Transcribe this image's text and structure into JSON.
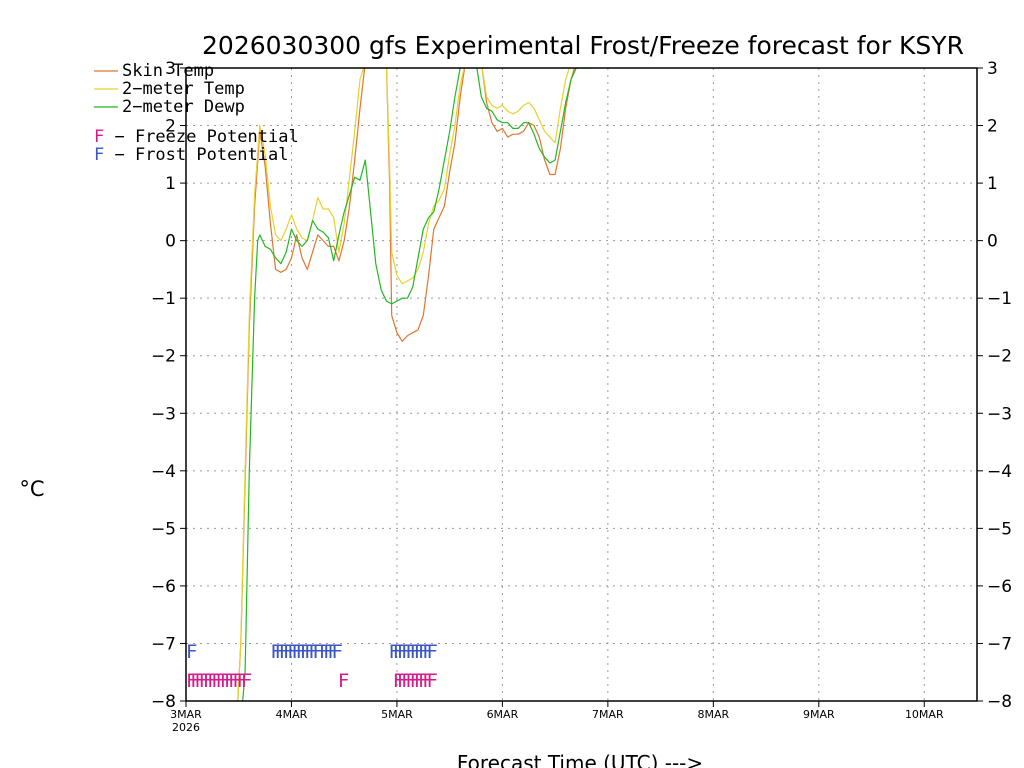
{
  "chart_data": {
    "type": "line",
    "title": "2026030300 gfs Experimental Frost/Freeze forecast for KSYR",
    "ylabel": "°C",
    "xlabel": "Forecast Time (UTC) --->",
    "ylim": [
      -8,
      3
    ],
    "xlim_days": [
      0,
      7.5
    ],
    "yticks": [
      "−8",
      "−7",
      "−6",
      "−5",
      "−4",
      "−3",
      "−2",
      "−1",
      "0",
      "1",
      "2",
      "3"
    ],
    "yticks_right": [
      "−8",
      "−7",
      "−6",
      "−5",
      "−4",
      "−3",
      "−2",
      "−1",
      "0",
      "1",
      "2",
      "3"
    ],
    "xticks": [
      {
        "day": 0,
        "label": "3MAR",
        "sub": "2026"
      },
      {
        "day": 1,
        "label": "4MAR",
        "sub": ""
      },
      {
        "day": 2,
        "label": "5MAR",
        "sub": ""
      },
      {
        "day": 3,
        "label": "6MAR",
        "sub": ""
      },
      {
        "day": 4,
        "label": "7MAR",
        "sub": ""
      },
      {
        "day": 5,
        "label": "8MAR",
        "sub": ""
      },
      {
        "day": 6,
        "label": "9MAR",
        "sub": ""
      },
      {
        "day": 7,
        "label": "10MAR",
        "sub": ""
      }
    ],
    "grid": true,
    "legend": {
      "position": "top-left",
      "series_entries": [
        "Skin Temp",
        "2−meter Temp",
        "2−meter Dewp"
      ],
      "marker_entries": [
        {
          "symbol": "F",
          "text": " − Freeze Potential",
          "color": "#d81b8c"
        },
        {
          "symbol": "F",
          "text": " − Frost Potential",
          "color": "#3a55c8"
        }
      ]
    },
    "series": [
      {
        "name": "Skin Temp",
        "color": "#e2762c",
        "points": [
          [
            0.48,
            -8.4
          ],
          [
            0.52,
            -7.0
          ],
          [
            0.56,
            -4.2
          ],
          [
            0.6,
            -1.5
          ],
          [
            0.65,
            0.6
          ],
          [
            0.7,
            1.9
          ],
          [
            0.75,
            1.3
          ],
          [
            0.8,
            0.3
          ],
          [
            0.85,
            -0.5
          ],
          [
            0.9,
            -0.55
          ],
          [
            0.95,
            -0.5
          ],
          [
            1.0,
            -0.3
          ],
          [
            1.05,
            0.1
          ],
          [
            1.1,
            -0.3
          ],
          [
            1.15,
            -0.5
          ],
          [
            1.2,
            -0.2
          ],
          [
            1.25,
            0.1
          ],
          [
            1.3,
            0.0
          ],
          [
            1.35,
            -0.1
          ],
          [
            1.4,
            -0.1
          ],
          [
            1.45,
            -0.35
          ],
          [
            1.5,
            0.0
          ],
          [
            1.55,
            0.6
          ],
          [
            1.6,
            1.4
          ],
          [
            1.65,
            2.3
          ],
          [
            1.7,
            3.1
          ],
          [
            1.9,
            3.1
          ],
          [
            1.93,
            1.0
          ],
          [
            1.95,
            -1.3
          ],
          [
            2.0,
            -1.6
          ],
          [
            2.05,
            -1.75
          ],
          [
            2.1,
            -1.65
          ],
          [
            2.15,
            -1.6
          ],
          [
            2.2,
            -1.55
          ],
          [
            2.25,
            -1.3
          ],
          [
            2.3,
            -0.6
          ],
          [
            2.35,
            0.2
          ],
          [
            2.4,
            0.4
          ],
          [
            2.45,
            0.6
          ],
          [
            2.5,
            1.2
          ],
          [
            2.55,
            1.7
          ],
          [
            2.6,
            2.5
          ],
          [
            2.65,
            3.1
          ],
          [
            2.8,
            3.1
          ],
          [
            2.85,
            2.4
          ],
          [
            2.9,
            2.05
          ],
          [
            2.95,
            1.9
          ],
          [
            3.0,
            1.95
          ],
          [
            3.05,
            1.8
          ],
          [
            3.1,
            1.85
          ],
          [
            3.15,
            1.85
          ],
          [
            3.2,
            1.9
          ],
          [
            3.25,
            2.05
          ],
          [
            3.3,
            2.0
          ],
          [
            3.35,
            1.8
          ],
          [
            3.4,
            1.4
          ],
          [
            3.45,
            1.15
          ],
          [
            3.5,
            1.15
          ],
          [
            3.55,
            1.6
          ],
          [
            3.6,
            2.3
          ],
          [
            3.65,
            2.8
          ],
          [
            3.7,
            3.1
          ]
        ]
      },
      {
        "name": "2−meter Temp",
        "color": "#e8d22a",
        "points": [
          [
            0.48,
            -8.4
          ],
          [
            0.52,
            -7.0
          ],
          [
            0.56,
            -4.0
          ],
          [
            0.6,
            -1.3
          ],
          [
            0.65,
            0.8
          ],
          [
            0.7,
            2.0
          ],
          [
            0.75,
            1.5
          ],
          [
            0.8,
            0.6
          ],
          [
            0.85,
            0.1
          ],
          [
            0.9,
            0.0
          ],
          [
            0.95,
            0.2
          ],
          [
            1.0,
            0.45
          ],
          [
            1.05,
            0.2
          ],
          [
            1.1,
            0.05
          ],
          [
            1.15,
            0.0
          ],
          [
            1.2,
            0.35
          ],
          [
            1.25,
            0.75
          ],
          [
            1.3,
            0.55
          ],
          [
            1.35,
            0.55
          ],
          [
            1.4,
            0.4
          ],
          [
            1.45,
            -0.2
          ],
          [
            1.5,
            0.3
          ],
          [
            1.55,
            1.1
          ],
          [
            1.6,
            1.9
          ],
          [
            1.65,
            2.8
          ],
          [
            1.7,
            3.1
          ],
          [
            1.9,
            3.1
          ],
          [
            1.93,
            1.3
          ],
          [
            1.95,
            -0.2
          ],
          [
            2.0,
            -0.6
          ],
          [
            2.05,
            -0.75
          ],
          [
            2.1,
            -0.7
          ],
          [
            2.15,
            -0.65
          ],
          [
            2.2,
            -0.5
          ],
          [
            2.25,
            -0.2
          ],
          [
            2.3,
            0.3
          ],
          [
            2.35,
            0.6
          ],
          [
            2.4,
            0.7
          ],
          [
            2.45,
            0.9
          ],
          [
            2.5,
            1.5
          ],
          [
            2.55,
            2.0
          ],
          [
            2.6,
            2.7
          ],
          [
            2.65,
            3.1
          ],
          [
            2.8,
            3.1
          ],
          [
            2.85,
            2.5
          ],
          [
            2.9,
            2.35
          ],
          [
            2.95,
            2.3
          ],
          [
            3.0,
            2.35
          ],
          [
            3.05,
            2.25
          ],
          [
            3.1,
            2.2
          ],
          [
            3.15,
            2.25
          ],
          [
            3.2,
            2.35
          ],
          [
            3.25,
            2.4
          ],
          [
            3.3,
            2.3
          ],
          [
            3.35,
            2.1
          ],
          [
            3.4,
            1.9
          ],
          [
            3.45,
            1.8
          ],
          [
            3.5,
            1.7
          ],
          [
            3.55,
            2.3
          ],
          [
            3.6,
            2.8
          ],
          [
            3.65,
            3.1
          ]
        ]
      },
      {
        "name": "2−meter Dewp",
        "color": "#22b822",
        "points": [
          [
            0.52,
            -8.4
          ],
          [
            0.56,
            -7.5
          ],
          [
            0.6,
            -4.0
          ],
          [
            0.65,
            -1.0
          ],
          [
            0.68,
            0.0
          ],
          [
            0.7,
            0.1
          ],
          [
            0.75,
            -0.1
          ],
          [
            0.8,
            -0.15
          ],
          [
            0.85,
            -0.3
          ],
          [
            0.9,
            -0.4
          ],
          [
            0.95,
            -0.2
          ],
          [
            1.0,
            0.2
          ],
          [
            1.05,
            0.0
          ],
          [
            1.1,
            -0.1
          ],
          [
            1.15,
            0.0
          ],
          [
            1.2,
            0.35
          ],
          [
            1.25,
            0.2
          ],
          [
            1.3,
            0.15
          ],
          [
            1.35,
            0.05
          ],
          [
            1.4,
            -0.35
          ],
          [
            1.45,
            0.1
          ],
          [
            1.5,
            0.5
          ],
          [
            1.55,
            0.8
          ],
          [
            1.6,
            1.1
          ],
          [
            1.65,
            1.05
          ],
          [
            1.7,
            1.4
          ],
          [
            1.75,
            0.5
          ],
          [
            1.8,
            -0.4
          ],
          [
            1.85,
            -0.85
          ],
          [
            1.9,
            -1.05
          ],
          [
            1.95,
            -1.1
          ],
          [
            2.0,
            -1.05
          ],
          [
            2.05,
            -1.0
          ],
          [
            2.1,
            -1.0
          ],
          [
            2.15,
            -0.8
          ],
          [
            2.2,
            -0.3
          ],
          [
            2.25,
            0.2
          ],
          [
            2.3,
            0.4
          ],
          [
            2.35,
            0.5
          ],
          [
            2.4,
            0.9
          ],
          [
            2.45,
            1.4
          ],
          [
            2.5,
            1.9
          ],
          [
            2.55,
            2.5
          ],
          [
            2.6,
            3.0
          ],
          [
            2.65,
            3.1
          ],
          [
            2.75,
            3.1
          ],
          [
            2.8,
            2.5
          ],
          [
            2.85,
            2.3
          ],
          [
            2.9,
            2.25
          ],
          [
            2.95,
            2.1
          ],
          [
            3.0,
            2.05
          ],
          [
            3.05,
            2.05
          ],
          [
            3.1,
            1.95
          ],
          [
            3.15,
            1.95
          ],
          [
            3.2,
            2.05
          ],
          [
            3.25,
            2.05
          ],
          [
            3.3,
            1.85
          ],
          [
            3.35,
            1.6
          ],
          [
            3.4,
            1.45
          ],
          [
            3.45,
            1.35
          ],
          [
            3.5,
            1.4
          ],
          [
            3.55,
            1.9
          ],
          [
            3.6,
            2.4
          ],
          [
            3.65,
            2.8
          ],
          [
            3.7,
            3.0
          ],
          [
            3.85,
            3.0
          ]
        ]
      }
    ],
    "markers": [
      {
        "kind": "Frost Potential",
        "color": "#3a55c8",
        "y": -7.1,
        "days": [
          0.0,
          0.8,
          0.84,
          0.88,
          0.92,
          0.96,
          1.0,
          1.04,
          1.08,
          1.12,
          1.16,
          1.2,
          1.26,
          1.3,
          1.34,
          1.38,
          1.92,
          1.96,
          2.0,
          2.04,
          2.08,
          2.12,
          2.16,
          2.2,
          2.24,
          2.28
        ]
      },
      {
        "kind": "Freeze Potential",
        "color": "#d81b8c",
        "y": -7.6,
        "days": [
          0.0,
          0.04,
          0.08,
          0.12,
          0.16,
          0.2,
          0.24,
          0.28,
          0.32,
          0.36,
          0.4,
          0.44,
          0.48,
          0.52,
          1.44,
          1.96,
          2.0,
          2.04,
          2.08,
          2.12,
          2.16,
          2.2,
          2.24,
          2.28
        ]
      }
    ]
  }
}
